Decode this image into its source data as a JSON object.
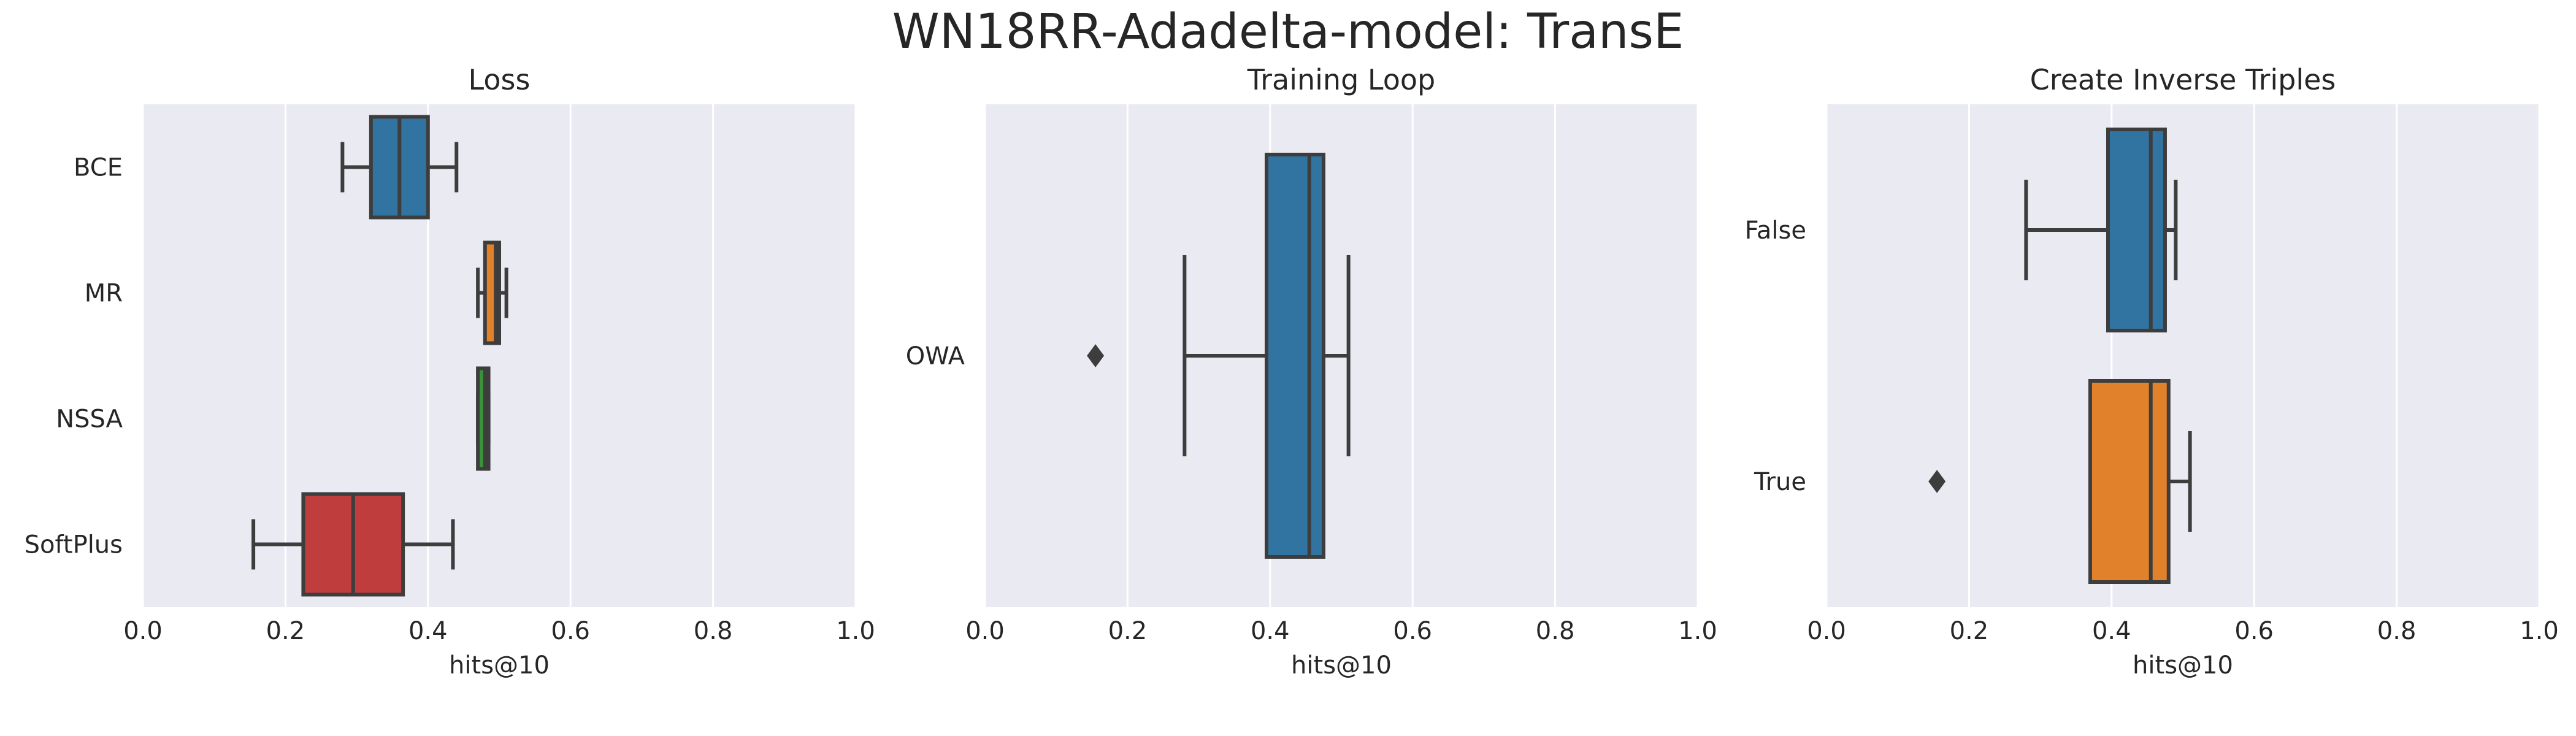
{
  "chart_data": {
    "type": "box",
    "title": "WN18RR-Adadelta-model: TransE",
    "panels": [
      {
        "title": "Loss",
        "xlabel": "hits@10",
        "xlim": [
          0,
          1
        ],
        "xticks": [
          "0.0",
          "0.2",
          "0.4",
          "0.6",
          "0.8",
          "1.0"
        ],
        "grid": true,
        "categories": [
          "BCE",
          "MR",
          "NSSA",
          "SoftPlus"
        ],
        "boxes": [
          {
            "label": "BCE",
            "color": "#3274a1",
            "whisker_low": 0.28,
            "q1": 0.32,
            "median": 0.36,
            "q3": 0.4,
            "whisker_high": 0.44,
            "outliers": []
          },
          {
            "label": "MR",
            "color": "#e1812c",
            "whisker_low": 0.47,
            "q1": 0.48,
            "median": 0.495,
            "q3": 0.5,
            "whisker_high": 0.51,
            "outliers": []
          },
          {
            "label": "NSSA",
            "color": "#3a923a",
            "whisker_low": 0.47,
            "q1": 0.47,
            "median": 0.48,
            "q3": 0.485,
            "whisker_high": 0.485,
            "outliers": []
          },
          {
            "label": "SoftPlus",
            "color": "#c03d3e",
            "whisker_low": 0.155,
            "q1": 0.225,
            "median": 0.295,
            "q3": 0.365,
            "whisker_high": 0.435,
            "outliers": []
          }
        ]
      },
      {
        "title": "Training Loop",
        "xlabel": "hits@10",
        "xlim": [
          0,
          1
        ],
        "xticks": [
          "0.0",
          "0.2",
          "0.4",
          "0.6",
          "0.8",
          "1.0"
        ],
        "grid": true,
        "categories": [
          "OWA"
        ],
        "boxes": [
          {
            "label": "OWA",
            "color": "#3274a1",
            "whisker_low": 0.28,
            "q1": 0.395,
            "median": 0.455,
            "q3": 0.475,
            "whisker_high": 0.51,
            "outliers": [
              0.155
            ]
          }
        ]
      },
      {
        "title": "Create Inverse Triples",
        "xlabel": "hits@10",
        "xlim": [
          0,
          1
        ],
        "xticks": [
          "0.0",
          "0.2",
          "0.4",
          "0.6",
          "0.8",
          "1.0"
        ],
        "grid": true,
        "categories": [
          "False",
          "True"
        ],
        "boxes": [
          {
            "label": "False",
            "color": "#3274a1",
            "whisker_low": 0.28,
            "q1": 0.395,
            "median": 0.455,
            "q3": 0.475,
            "whisker_high": 0.49,
            "outliers": []
          },
          {
            "label": "True",
            "color": "#e1812c",
            "whisker_low": 0.37,
            "q1": 0.37,
            "median": 0.455,
            "q3": 0.48,
            "whisker_high": 0.51,
            "outliers": [
              0.155
            ]
          }
        ]
      }
    ]
  }
}
